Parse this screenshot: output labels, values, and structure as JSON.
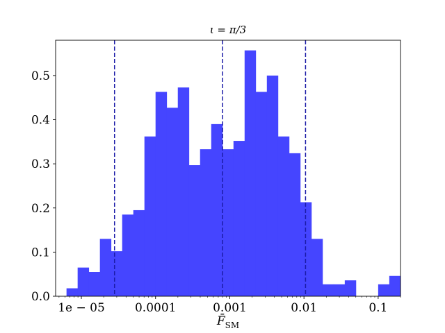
{
  "chart_data": {
    "type": "bar",
    "title": "ι = π/3",
    "xlabel": "F̄_SM",
    "xlabel_main": "F̄",
    "xlabel_sub": "SM",
    "ylabel": "",
    "x_scale": "log",
    "xlim": [
      4.5e-06,
      0.2
    ],
    "ylim": [
      0,
      0.58
    ],
    "x_ticks": [
      {
        "value": 1e-05,
        "label": "1e − 05"
      },
      {
        "value": 0.0001,
        "label": "0.0001"
      },
      {
        "value": 0.001,
        "label": "0.001"
      },
      {
        "value": 0.01,
        "label": "0.01"
      },
      {
        "value": 0.1,
        "label": "0.1"
      }
    ],
    "y_ticks": [
      {
        "value": 0.0,
        "label": "0.0"
      },
      {
        "value": 0.1,
        "label": "0.1"
      },
      {
        "value": 0.2,
        "label": "0.2"
      },
      {
        "value": 0.3,
        "label": "0.3"
      },
      {
        "value": 0.4,
        "label": "0.4"
      },
      {
        "value": 0.5,
        "label": "0.5"
      }
    ],
    "bin_edges_log10": [
      -5.2,
      -5.05,
      -4.9,
      -4.75,
      -4.6,
      -4.45,
      -4.3,
      -4.15,
      -4.0,
      -3.85,
      -3.7,
      -3.55,
      -3.4,
      -3.25,
      -3.1,
      -2.95,
      -2.8,
      -2.65,
      -2.5,
      -2.35,
      -2.2,
      -2.05,
      -1.9,
      -1.75,
      -1.6,
      -1.45,
      -1.3,
      -1.15,
      -1.0,
      -0.85,
      -0.7
    ],
    "values": [
      0.018,
      0.065,
      0.055,
      0.13,
      0.102,
      0.185,
      0.195,
      0.362,
      0.463,
      0.427,
      0.473,
      0.297,
      0.333,
      0.39,
      0.333,
      0.352,
      0.557,
      0.463,
      0.5,
      0.362,
      0.324,
      0.213,
      0.13,
      0.027,
      0.027,
      0.036,
      0.0,
      0.0,
      0.027,
      0.046
    ],
    "bar_color": "#4545ff",
    "vlines": [
      {
        "x": 2.8e-05
      },
      {
        "x": 0.0008
      },
      {
        "x": 0.0105
      }
    ],
    "vline_color": "#1c1ca8",
    "grid": false,
    "legend": false
  }
}
